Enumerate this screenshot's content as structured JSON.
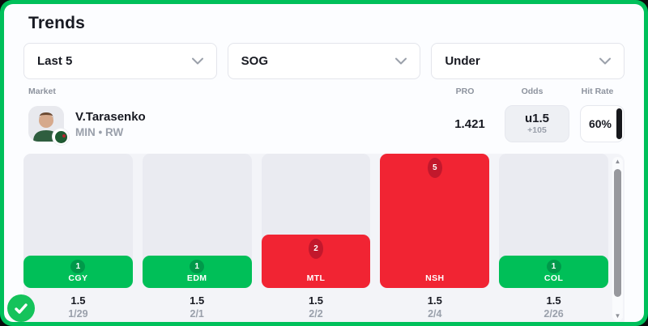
{
  "window": {
    "title": "Trends"
  },
  "filters": {
    "period": {
      "value": "Last 5"
    },
    "stat": {
      "value": "SOG"
    },
    "side": {
      "value": "Under"
    }
  },
  "table_header": {
    "market": "Market",
    "pro": "PRO",
    "odds": "Odds",
    "hit_rate": "Hit Rate"
  },
  "player": {
    "name": "V.Tarasenko",
    "team_pos": "MIN • RW",
    "pro_value": "1.421",
    "odds_line": "u1.5",
    "odds_price": "+105",
    "hit_rate": "60%"
  },
  "chart_data": {
    "type": "bar",
    "categories": [
      "CGY",
      "EDM",
      "MTL",
      "NSH",
      "COL"
    ],
    "values": [
      1,
      1,
      2,
      5,
      1
    ],
    "line_values": [
      "1.5",
      "1.5",
      "1.5",
      "1.5",
      "1.5"
    ],
    "dates": [
      "1/29",
      "2/1",
      "2/2",
      "2/4",
      "2/26"
    ],
    "results": [
      "under_hit",
      "under_hit",
      "over",
      "over",
      "under_hit"
    ],
    "ylim": [
      0,
      5
    ],
    "colors": {
      "hit": "#00bf58",
      "hit_badge": "#00994a",
      "miss": "#f12433",
      "miss_badge": "#c2182c"
    }
  },
  "theme": {
    "frame_green": "#00c05a",
    "hit_rate_bar": "#17181c"
  }
}
